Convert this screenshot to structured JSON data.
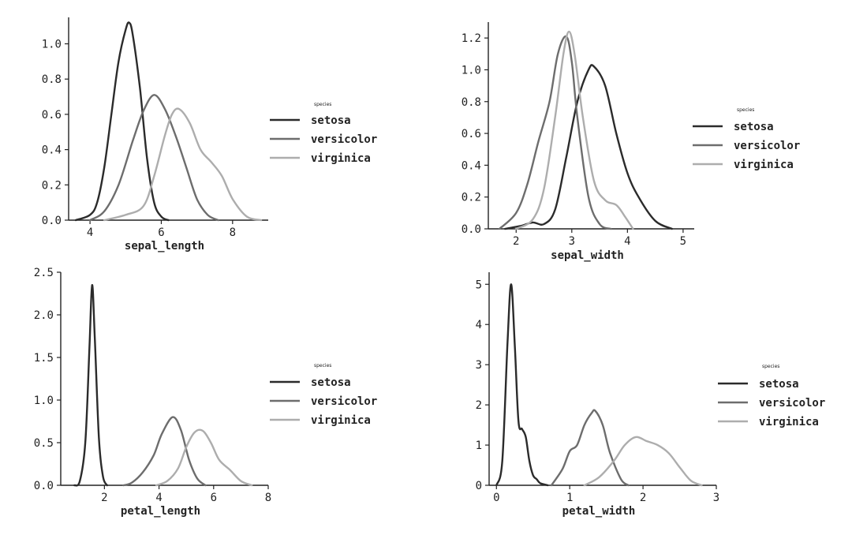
{
  "colors": {
    "setosa": "#2b2b2b",
    "versicolor": "#6d6d6d",
    "virginica": "#adadad",
    "axis": "#222222"
  },
  "chart_data": [
    {
      "type": "line",
      "title": "",
      "xlabel": "sepal_length",
      "ylabel": "",
      "xlim": [
        3.4,
        9.0
      ],
      "ylim": [
        0,
        1.15
      ],
      "xticks": [
        "4",
        "6",
        "8"
      ],
      "xtick_values": [
        4,
        6,
        8
      ],
      "yticks": [
        "0.0",
        "0.2",
        "0.4",
        "0.6",
        "0.8",
        "1.0"
      ],
      "ytick_values": [
        0,
        0.2,
        0.4,
        0.6,
        0.8,
        1.0
      ],
      "legend_title": "species",
      "legend_position": "right",
      "series": [
        {
          "name": "setosa",
          "x": [
            3.6,
            4.0,
            4.2,
            4.4,
            4.6,
            4.8,
            5.0,
            5.1,
            5.2,
            5.4,
            5.6,
            5.8,
            6.0,
            6.2
          ],
          "y": [
            0,
            0.03,
            0.1,
            0.3,
            0.6,
            0.9,
            1.08,
            1.12,
            1.05,
            0.75,
            0.35,
            0.1,
            0.02,
            0
          ]
        },
        {
          "name": "versicolor",
          "x": [
            4.0,
            4.4,
            4.8,
            5.2,
            5.5,
            5.8,
            6.1,
            6.4,
            6.7,
            7.0,
            7.3,
            7.6
          ],
          "y": [
            0,
            0.05,
            0.2,
            0.45,
            0.62,
            0.71,
            0.63,
            0.48,
            0.3,
            0.12,
            0.03,
            0
          ]
        },
        {
          "name": "virginica",
          "x": [
            4.4,
            5.0,
            5.5,
            5.8,
            6.1,
            6.3,
            6.5,
            6.8,
            7.1,
            7.4,
            7.7,
            8.0,
            8.4,
            8.8
          ],
          "y": [
            0,
            0.03,
            0.08,
            0.25,
            0.48,
            0.6,
            0.63,
            0.55,
            0.4,
            0.33,
            0.25,
            0.12,
            0.02,
            0
          ]
        }
      ]
    },
    {
      "type": "line",
      "title": "",
      "xlabel": "sepal_width",
      "ylabel": "",
      "xlim": [
        1.5,
        5.2
      ],
      "ylim": [
        0,
        1.3
      ],
      "xticks": [
        "2",
        "3",
        "4",
        "5"
      ],
      "xtick_values": [
        2,
        3,
        4,
        5
      ],
      "yticks": [
        "0.0",
        "0.2",
        "0.4",
        "0.6",
        "0.8",
        "1.0",
        "1.2"
      ],
      "ytick_values": [
        0,
        0.2,
        0.4,
        0.6,
        0.8,
        1.0,
        1.2
      ],
      "legend_title": "species",
      "legend_position": "right",
      "series": [
        {
          "name": "setosa",
          "x": [
            1.8,
            2.1,
            2.3,
            2.5,
            2.7,
            2.9,
            3.1,
            3.3,
            3.4,
            3.6,
            3.8,
            4.0,
            4.2,
            4.5,
            4.8
          ],
          "y": [
            0,
            0.02,
            0.04,
            0.03,
            0.12,
            0.45,
            0.8,
            1.0,
            1.02,
            0.9,
            0.6,
            0.35,
            0.2,
            0.05,
            0
          ]
        },
        {
          "name": "versicolor",
          "x": [
            1.7,
            2.0,
            2.2,
            2.4,
            2.6,
            2.75,
            2.9,
            3.0,
            3.1,
            3.3,
            3.5,
            3.7
          ],
          "y": [
            0,
            0.1,
            0.28,
            0.55,
            0.8,
            1.1,
            1.21,
            1.05,
            0.7,
            0.2,
            0.03,
            0
          ]
        },
        {
          "name": "virginica",
          "x": [
            2.0,
            2.3,
            2.5,
            2.7,
            2.85,
            2.95,
            3.05,
            3.2,
            3.4,
            3.6,
            3.8,
            3.95,
            4.1
          ],
          "y": [
            0,
            0.06,
            0.25,
            0.7,
            1.1,
            1.24,
            1.1,
            0.7,
            0.3,
            0.18,
            0.15,
            0.08,
            0
          ]
        }
      ]
    },
    {
      "type": "line",
      "title": "",
      "xlabel": "petal_length",
      "ylabel": "",
      "xlim": [
        0.4,
        8.0
      ],
      "ylim": [
        0,
        2.5
      ],
      "xticks": [
        "2",
        "4",
        "6",
        "8"
      ],
      "xtick_values": [
        2,
        4,
        6,
        8
      ],
      "yticks": [
        "0.0",
        "0.5",
        "1.0",
        "1.5",
        "2.0",
        "2.5"
      ],
      "ytick_values": [
        0,
        0.5,
        1.0,
        1.5,
        2.0,
        2.5
      ],
      "legend_title": "species",
      "legend_position": "right",
      "series": [
        {
          "name": "setosa",
          "x": [
            0.9,
            1.1,
            1.3,
            1.45,
            1.55,
            1.65,
            1.8,
            1.95,
            2.1
          ],
          "y": [
            0,
            0.05,
            0.5,
            1.6,
            2.35,
            1.7,
            0.55,
            0.1,
            0
          ]
        },
        {
          "name": "versicolor",
          "x": [
            2.7,
            3.0,
            3.4,
            3.8,
            4.1,
            4.5,
            4.8,
            5.1,
            5.4,
            5.7
          ],
          "y": [
            0,
            0.03,
            0.15,
            0.35,
            0.6,
            0.8,
            0.65,
            0.3,
            0.08,
            0
          ]
        },
        {
          "name": "virginica",
          "x": [
            3.9,
            4.3,
            4.7,
            5.0,
            5.3,
            5.6,
            5.9,
            6.2,
            6.6,
            7.0,
            7.4
          ],
          "y": [
            0,
            0.05,
            0.2,
            0.45,
            0.62,
            0.64,
            0.5,
            0.3,
            0.18,
            0.05,
            0
          ]
        }
      ]
    },
    {
      "type": "line",
      "title": "",
      "xlabel": "petal_width",
      "ylabel": "",
      "xlim": [
        -0.1,
        3.0
      ],
      "ylim": [
        0,
        5.3
      ],
      "xticks": [
        "0",
        "1",
        "2",
        "3"
      ],
      "xtick_values": [
        0,
        1,
        2,
        3
      ],
      "yticks": [
        "0",
        "1",
        "2",
        "3",
        "4",
        "5"
      ],
      "ytick_values": [
        0,
        1,
        2,
        3,
        4,
        5
      ],
      "legend_title": "species",
      "legend_position": "right",
      "series": [
        {
          "name": "setosa",
          "x": [
            0.0,
            0.08,
            0.15,
            0.2,
            0.25,
            0.3,
            0.35,
            0.4,
            0.45,
            0.5,
            0.55,
            0.6,
            0.7
          ],
          "y": [
            0,
            0.6,
            3.5,
            5.0,
            3.5,
            1.6,
            1.4,
            1.2,
            0.6,
            0.25,
            0.15,
            0.05,
            0
          ]
        },
        {
          "name": "versicolor",
          "x": [
            0.75,
            0.9,
            1.0,
            1.1,
            1.2,
            1.3,
            1.35,
            1.45,
            1.55,
            1.7,
            1.8
          ],
          "y": [
            0,
            0.4,
            0.85,
            1.0,
            1.5,
            1.8,
            1.85,
            1.5,
            0.8,
            0.15,
            0
          ]
        },
        {
          "name": "virginica",
          "x": [
            1.2,
            1.4,
            1.6,
            1.75,
            1.9,
            2.05,
            2.2,
            2.35,
            2.5,
            2.65,
            2.8
          ],
          "y": [
            0,
            0.2,
            0.6,
            1.0,
            1.2,
            1.1,
            1.0,
            0.8,
            0.45,
            0.12,
            0
          ]
        }
      ]
    }
  ]
}
